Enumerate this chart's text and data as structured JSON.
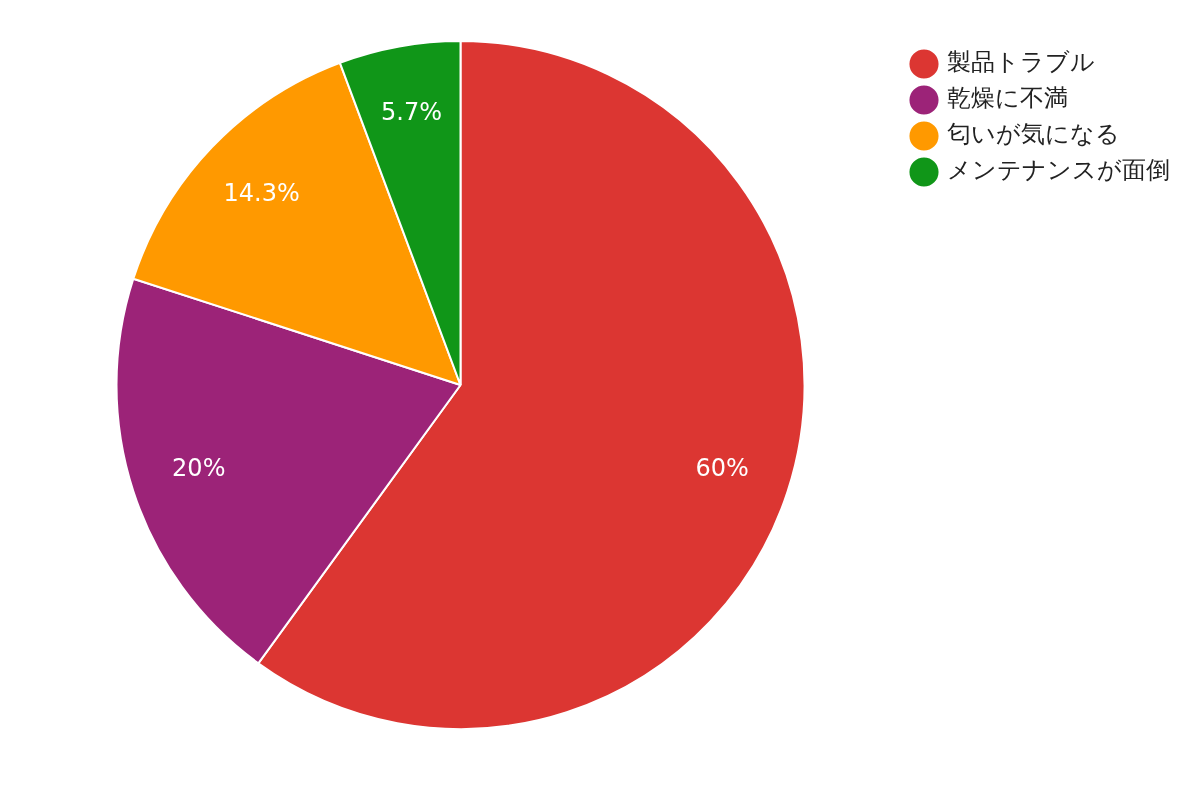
{
  "chart_data": {
    "type": "pie",
    "categories": [
      "製品トラブル",
      "乾燥に不満",
      "匂いが気になる",
      "メンテナンスが面倒"
    ],
    "values": [
      60,
      20,
      14.3,
      5.7
    ],
    "colors": [
      "#dc3632",
      "#9c2378",
      "#ff9900",
      "#109618"
    ],
    "value_labels": [
      "60%",
      "20%",
      "14.3%",
      "5.7%"
    ],
    "legend": "top right"
  }
}
